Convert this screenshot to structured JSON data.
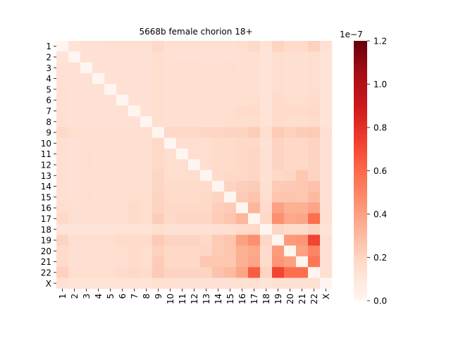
{
  "chart_data": {
    "type": "heatmap",
    "title": "5668b female chorion 18+",
    "xlabel": "",
    "ylabel": "",
    "labels": [
      "1",
      "2",
      "3",
      "4",
      "5",
      "6",
      "7",
      "8",
      "9",
      "10",
      "11",
      "12",
      "13",
      "14",
      "15",
      "16",
      "17",
      "18",
      "19",
      "20",
      "21",
      "22",
      "X"
    ],
    "colorbar": {
      "min": 0.0,
      "max": 1.2,
      "ticks": [
        "0.0",
        "0.2",
        "0.4",
        "0.6",
        "0.8",
        "1.0",
        "1.2"
      ],
      "multiplier": "1e−7",
      "colormap": "Reds"
    },
    "values": [
      [
        0.0,
        0.13,
        0.14,
        0.14,
        0.15,
        0.15,
        0.15,
        0.15,
        0.18,
        0.15,
        0.15,
        0.15,
        0.15,
        0.15,
        0.15,
        0.16,
        0.18,
        0.13,
        0.2,
        0.17,
        0.17,
        0.21,
        0.14
      ],
      [
        0.13,
        0.0,
        0.14,
        0.14,
        0.14,
        0.14,
        0.14,
        0.14,
        0.16,
        0.14,
        0.14,
        0.14,
        0.14,
        0.14,
        0.14,
        0.15,
        0.15,
        0.12,
        0.16,
        0.15,
        0.15,
        0.16,
        0.13
      ],
      [
        0.14,
        0.14,
        0.0,
        0.14,
        0.14,
        0.14,
        0.14,
        0.14,
        0.16,
        0.15,
        0.16,
        0.16,
        0.15,
        0.15,
        0.16,
        0.15,
        0.15,
        0.12,
        0.16,
        0.15,
        0.15,
        0.16,
        0.13
      ],
      [
        0.14,
        0.14,
        0.14,
        0.0,
        0.14,
        0.14,
        0.14,
        0.14,
        0.16,
        0.15,
        0.15,
        0.15,
        0.15,
        0.15,
        0.15,
        0.15,
        0.15,
        0.12,
        0.16,
        0.15,
        0.15,
        0.16,
        0.13
      ],
      [
        0.15,
        0.14,
        0.14,
        0.14,
        0.0,
        0.14,
        0.14,
        0.14,
        0.16,
        0.15,
        0.15,
        0.15,
        0.15,
        0.15,
        0.15,
        0.15,
        0.15,
        0.13,
        0.16,
        0.15,
        0.15,
        0.16,
        0.13
      ],
      [
        0.15,
        0.14,
        0.14,
        0.14,
        0.14,
        0.0,
        0.14,
        0.14,
        0.16,
        0.15,
        0.15,
        0.15,
        0.15,
        0.15,
        0.15,
        0.15,
        0.16,
        0.13,
        0.17,
        0.16,
        0.16,
        0.17,
        0.13
      ],
      [
        0.15,
        0.14,
        0.14,
        0.14,
        0.14,
        0.14,
        0.0,
        0.14,
        0.16,
        0.15,
        0.15,
        0.15,
        0.15,
        0.15,
        0.16,
        0.17,
        0.17,
        0.13,
        0.17,
        0.17,
        0.17,
        0.18,
        0.13
      ],
      [
        0.15,
        0.14,
        0.14,
        0.14,
        0.14,
        0.14,
        0.14,
        0.0,
        0.16,
        0.15,
        0.15,
        0.15,
        0.15,
        0.15,
        0.16,
        0.16,
        0.16,
        0.13,
        0.17,
        0.16,
        0.16,
        0.17,
        0.13
      ],
      [
        0.18,
        0.16,
        0.16,
        0.16,
        0.16,
        0.16,
        0.16,
        0.16,
        0.0,
        0.18,
        0.18,
        0.18,
        0.19,
        0.19,
        0.2,
        0.2,
        0.23,
        0.16,
        0.24,
        0.21,
        0.23,
        0.24,
        0.15
      ],
      [
        0.15,
        0.14,
        0.15,
        0.15,
        0.15,
        0.15,
        0.15,
        0.15,
        0.18,
        0.0,
        0.16,
        0.16,
        0.16,
        0.17,
        0.17,
        0.18,
        0.18,
        0.14,
        0.2,
        0.18,
        0.18,
        0.2,
        0.14
      ],
      [
        0.15,
        0.14,
        0.16,
        0.15,
        0.15,
        0.15,
        0.15,
        0.15,
        0.18,
        0.16,
        0.0,
        0.16,
        0.16,
        0.17,
        0.17,
        0.18,
        0.19,
        0.14,
        0.2,
        0.18,
        0.18,
        0.2,
        0.14
      ],
      [
        0.15,
        0.14,
        0.16,
        0.15,
        0.15,
        0.15,
        0.15,
        0.15,
        0.18,
        0.16,
        0.16,
        0.0,
        0.16,
        0.17,
        0.17,
        0.18,
        0.19,
        0.14,
        0.2,
        0.18,
        0.18,
        0.2,
        0.14
      ],
      [
        0.15,
        0.14,
        0.15,
        0.15,
        0.15,
        0.15,
        0.15,
        0.15,
        0.19,
        0.16,
        0.16,
        0.16,
        0.0,
        0.17,
        0.18,
        0.18,
        0.19,
        0.14,
        0.18,
        0.19,
        0.25,
        0.2,
        0.14
      ],
      [
        0.15,
        0.14,
        0.15,
        0.15,
        0.15,
        0.15,
        0.15,
        0.15,
        0.19,
        0.17,
        0.17,
        0.17,
        0.17,
        0.0,
        0.2,
        0.22,
        0.23,
        0.15,
        0.24,
        0.24,
        0.25,
        0.27,
        0.14
      ],
      [
        0.15,
        0.14,
        0.16,
        0.15,
        0.15,
        0.15,
        0.16,
        0.16,
        0.2,
        0.17,
        0.17,
        0.17,
        0.18,
        0.2,
        0.0,
        0.24,
        0.26,
        0.16,
        0.26,
        0.26,
        0.25,
        0.3,
        0.14
      ],
      [
        0.16,
        0.15,
        0.15,
        0.15,
        0.15,
        0.15,
        0.17,
        0.16,
        0.2,
        0.18,
        0.18,
        0.18,
        0.18,
        0.22,
        0.24,
        0.0,
        0.32,
        0.17,
        0.4,
        0.34,
        0.34,
        0.38,
        0.15
      ],
      [
        0.18,
        0.15,
        0.15,
        0.15,
        0.15,
        0.16,
        0.17,
        0.16,
        0.23,
        0.18,
        0.19,
        0.19,
        0.19,
        0.23,
        0.26,
        0.32,
        0.0,
        0.18,
        0.46,
        0.37,
        0.38,
        0.58,
        0.15
      ],
      [
        0.13,
        0.12,
        0.12,
        0.12,
        0.13,
        0.13,
        0.13,
        0.13,
        0.16,
        0.14,
        0.14,
        0.14,
        0.14,
        0.15,
        0.16,
        0.17,
        0.18,
        0.0,
        0.19,
        0.17,
        0.17,
        0.2,
        0.12
      ],
      [
        0.2,
        0.16,
        0.16,
        0.16,
        0.16,
        0.17,
        0.17,
        0.17,
        0.24,
        0.2,
        0.2,
        0.2,
        0.18,
        0.24,
        0.26,
        0.4,
        0.46,
        0.19,
        0.0,
        0.42,
        0.44,
        0.72,
        0.15
      ],
      [
        0.17,
        0.15,
        0.15,
        0.15,
        0.15,
        0.16,
        0.17,
        0.16,
        0.21,
        0.18,
        0.18,
        0.18,
        0.19,
        0.24,
        0.26,
        0.34,
        0.37,
        0.17,
        0.42,
        0.0,
        0.4,
        0.5,
        0.14
      ],
      [
        0.17,
        0.15,
        0.15,
        0.15,
        0.15,
        0.16,
        0.17,
        0.16,
        0.23,
        0.18,
        0.18,
        0.18,
        0.25,
        0.25,
        0.25,
        0.34,
        0.38,
        0.17,
        0.44,
        0.4,
        0.0,
        0.55,
        0.14
      ],
      [
        0.21,
        0.16,
        0.16,
        0.16,
        0.16,
        0.17,
        0.18,
        0.17,
        0.24,
        0.2,
        0.2,
        0.2,
        0.2,
        0.27,
        0.3,
        0.38,
        0.64,
        0.2,
        0.72,
        0.58,
        0.58,
        0.0,
        0.15
      ],
      [
        0.14,
        0.13,
        0.13,
        0.13,
        0.13,
        0.13,
        0.13,
        0.13,
        0.15,
        0.14,
        0.14,
        0.14,
        0.14,
        0.14,
        0.14,
        0.15,
        0.15,
        0.12,
        0.15,
        0.14,
        0.14,
        0.15,
        0.0
      ]
    ]
  }
}
